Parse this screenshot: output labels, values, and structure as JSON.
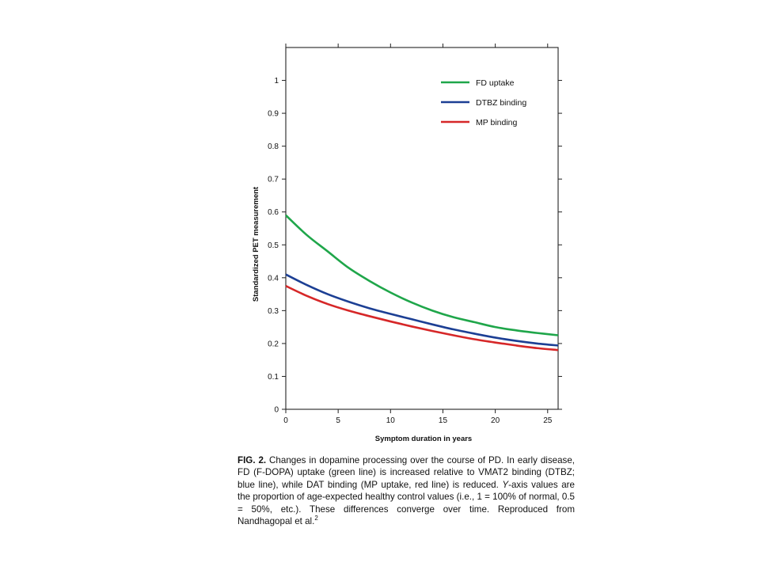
{
  "chart_data": {
    "type": "line",
    "xlabel": "Symptom duration in years",
    "ylabel": "Standardized PET measurement",
    "xlim": [
      0,
      26
    ],
    "ylim": [
      0,
      1.1
    ],
    "x_ticks": [
      "0",
      "5",
      "10",
      "15",
      "20",
      "25"
    ],
    "y_ticks": [
      "0",
      "0.1",
      "0.2",
      "0.3",
      "0.4",
      "0.5",
      "0.6",
      "0.7",
      "0.8",
      "0.9",
      "1"
    ],
    "x_tick_values": [
      0,
      5,
      10,
      15,
      20,
      25
    ],
    "y_tick_values": [
      0,
      0.1,
      0.2,
      0.3,
      0.4,
      0.5,
      0.6,
      0.7,
      0.8,
      0.9,
      1.0
    ],
    "legend_position": "top-right",
    "grid": false,
    "x": [
      0,
      2,
      4,
      6,
      8,
      10,
      12,
      14,
      16,
      18,
      20,
      22,
      24,
      26
    ],
    "series": [
      {
        "name": "FD uptake",
        "color": "#1fa64a",
        "values": [
          0.59,
          0.53,
          0.48,
          0.43,
          0.39,
          0.355,
          0.325,
          0.3,
          0.28,
          0.265,
          0.25,
          0.24,
          0.232,
          0.225
        ]
      },
      {
        "name": "DTBZ binding",
        "color": "#1c3f94",
        "values": [
          0.41,
          0.378,
          0.35,
          0.327,
          0.307,
          0.29,
          0.274,
          0.258,
          0.243,
          0.23,
          0.218,
          0.208,
          0.2,
          0.194
        ]
      },
      {
        "name": "MP binding",
        "color": "#d62728",
        "values": [
          0.375,
          0.345,
          0.32,
          0.3,
          0.283,
          0.267,
          0.252,
          0.238,
          0.225,
          0.213,
          0.203,
          0.194,
          0.186,
          0.18
        ]
      }
    ]
  },
  "caption": {
    "fig_label": "FIG. 2.",
    "text_1": " Changes in dopamine processing over the course of PD. In early disease, FD (F-DOPA) uptake (green line) is increased relative to VMAT2 binding (DTBZ; blue line), while DAT binding (MP uptake, red line) is reduced. ",
    "y_axis": "Y",
    "text_2": "-axis values are the proportion of age-expected healthy control values (i.e., 1 = 100% of normal, 0.5 = 50%, etc.). These differences converge over time. Reproduced from Nandhagopal et al.",
    "ref": "2"
  }
}
